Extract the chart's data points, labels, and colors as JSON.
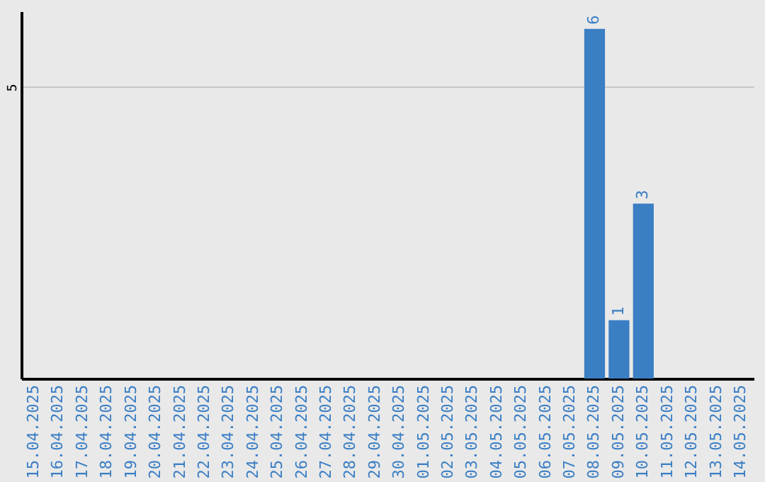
{
  "chart_data": {
    "type": "bar",
    "categories": [
      "15.04.2025",
      "16.04.2025",
      "17.04.2025",
      "18.04.2025",
      "19.04.2025",
      "20.04.2025",
      "21.04.2025",
      "22.04.2025",
      "23.04.2025",
      "24.04.2025",
      "25.04.2025",
      "26.04.2025",
      "27.04.2025",
      "28.04.2025",
      "29.04.2025",
      "30.04.2025",
      "01.05.2025",
      "02.05.2025",
      "03.05.2025",
      "04.05.2025",
      "05.05.2025",
      "06.05.2025",
      "07.05.2025",
      "08.05.2025",
      "09.05.2025",
      "10.05.2025",
      "11.05.2025",
      "12.05.2025",
      "13.05.2025",
      "14.05.2025"
    ],
    "values": [
      null,
      null,
      null,
      null,
      null,
      null,
      null,
      null,
      null,
      null,
      null,
      null,
      null,
      null,
      null,
      null,
      null,
      null,
      null,
      null,
      null,
      null,
      null,
      6,
      1,
      3,
      null,
      null,
      null,
      null
    ],
    "data_labels": true,
    "color": "#3a7ec4",
    "ylim": [
      0,
      6.3
    ],
    "yticks": [
      5
    ],
    "grid": "y"
  }
}
